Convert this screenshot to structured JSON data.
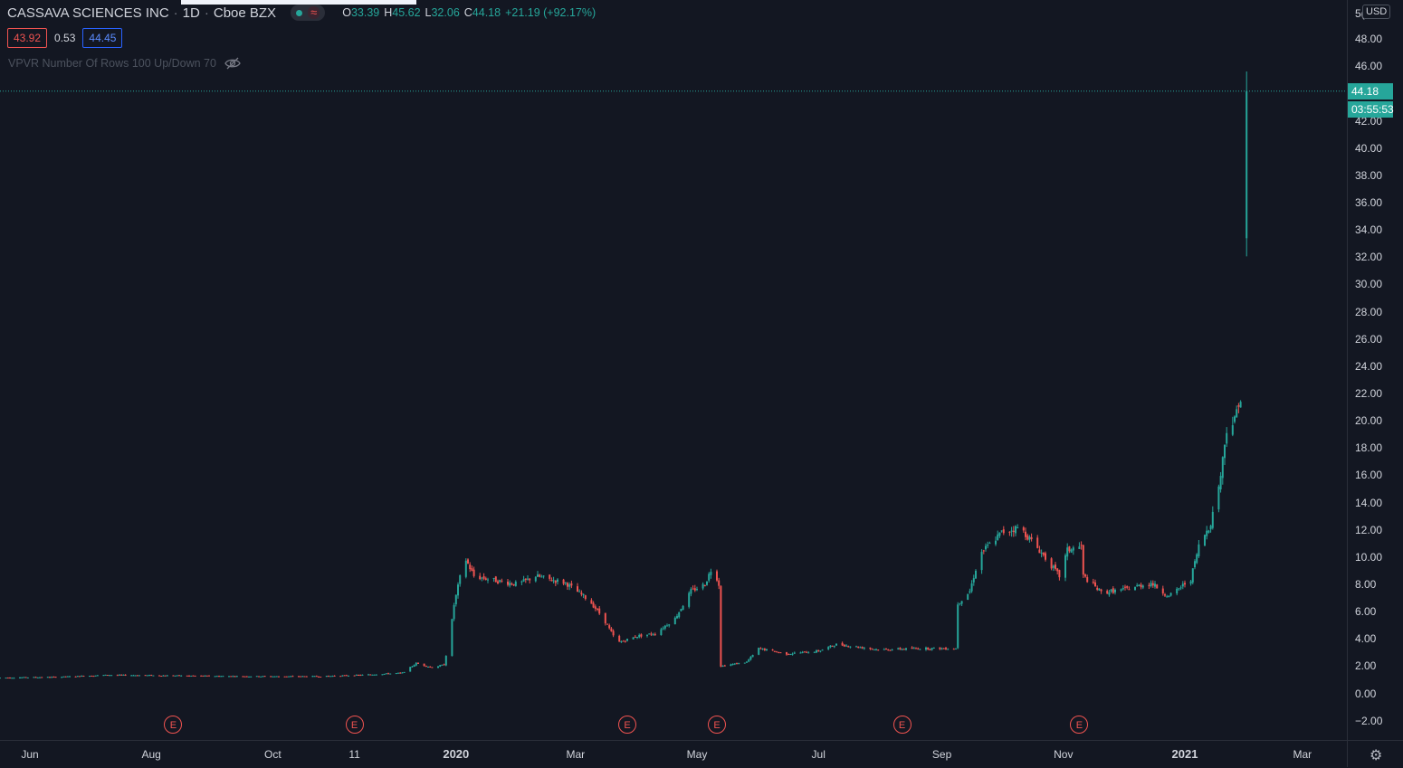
{
  "header": {
    "symbol": "CASSAVA SCIENCES INC",
    "interval": "1D",
    "exchange": "Cboe BZX",
    "ohlc": {
      "o_label": "O",
      "o": "33.39",
      "h_label": "H",
      "h": "45.62",
      "l_label": "L",
      "l": "32.06",
      "c_label": "C",
      "c": "44.18",
      "change": "+21.19 (+92.17%)"
    }
  },
  "quote": {
    "bid": "43.92",
    "spread": "0.53",
    "ask": "44.45"
  },
  "indicator": {
    "label": "VPVR Number Of Rows 100 Up/Down 70"
  },
  "price_axis": {
    "currency": "USD",
    "top_cut_label": "5(",
    "last_price": "44.18",
    "countdown": "03:55:53"
  },
  "earnings_badge": "E",
  "colors": {
    "up": "#26a69a",
    "down": "#ef5350",
    "background": "#131722",
    "grid_line": "#2a2e39",
    "bid": "#ef5350",
    "ask": "#2962ff"
  },
  "icons": [
    "eye-off-icon",
    "settings-gear-icon",
    "wave-icon",
    "status-dot-icon"
  ],
  "chart_data": {
    "type": "candlestick",
    "x_type": "date",
    "x_range": [
      "2019-05-17",
      "2021-03-15"
    ],
    "ylim": [
      -2.6,
      50
    ],
    "y_ticks": [
      48.0,
      46.0,
      42.0,
      40.0,
      38.0,
      36.0,
      34.0,
      32.0,
      30.0,
      28.0,
      26.0,
      24.0,
      22.0,
      20.0,
      18.0,
      16.0,
      14.0,
      12.0,
      10.0,
      8.0,
      6.0,
      4.0,
      2.0,
      0.0,
      -2.0
    ],
    "y_tick_labels": [
      "48.00",
      "46.00",
      "42.00",
      "40.00",
      "38.00",
      "36.00",
      "34.00",
      "32.00",
      "30.00",
      "28.00",
      "26.00",
      "24.00",
      "22.00",
      "20.00",
      "18.00",
      "16.00",
      "14.00",
      "12.00",
      "10.00",
      "8.00",
      "6.00",
      "4.00",
      "2.00",
      "0.00",
      "−2.00"
    ],
    "x_ticks": [
      {
        "date": "2019-06-01",
        "label": "Jun"
      },
      {
        "date": "2019-08-01",
        "label": "Aug"
      },
      {
        "date": "2019-10-01",
        "label": "Oct"
      },
      {
        "date": "2019-11-11",
        "label": "11"
      },
      {
        "date": "2020-01-01",
        "label": "2020",
        "major": true
      },
      {
        "date": "2020-03-01",
        "label": "Mar"
      },
      {
        "date": "2020-05-01",
        "label": "May"
      },
      {
        "date": "2020-07-01",
        "label": "Jul"
      },
      {
        "date": "2020-09-01",
        "label": "Sep"
      },
      {
        "date": "2020-11-01",
        "label": "Nov"
      },
      {
        "date": "2021-01-01",
        "label": "2021",
        "major": true
      },
      {
        "date": "2021-03-01",
        "label": "Mar"
      }
    ],
    "earnings_dates": [
      "2019-08-12",
      "2019-11-11",
      "2020-03-27",
      "2020-05-11",
      "2020-08-12",
      "2020-11-09"
    ],
    "price_path": [
      {
        "date": "2019-05-17",
        "close": 1.15
      },
      {
        "date": "2019-06-15",
        "close": 1.2
      },
      {
        "date": "2019-07-10",
        "close": 1.35
      },
      {
        "date": "2019-08-15",
        "close": 1.3
      },
      {
        "date": "2019-09-20",
        "close": 1.25
      },
      {
        "date": "2019-10-25",
        "close": 1.25
      },
      {
        "date": "2019-11-15",
        "close": 1.35
      },
      {
        "date": "2019-12-05",
        "close": 1.5
      },
      {
        "date": "2019-12-12",
        "close": 2.2
      },
      {
        "date": "2019-12-20",
        "close": 1.9
      },
      {
        "date": "2019-12-26",
        "close": 2.1
      },
      {
        "date": "2019-12-29",
        "close": 4.2
      },
      {
        "date": "2019-12-31",
        "close": 6.5
      },
      {
        "date": "2020-01-03",
        "close": 8.5
      },
      {
        "date": "2020-01-06",
        "close": 9.8
      },
      {
        "date": "2020-01-10",
        "close": 8.6
      },
      {
        "date": "2020-01-20",
        "close": 8.3
      },
      {
        "date": "2020-02-01",
        "close": 8.0
      },
      {
        "date": "2020-02-10",
        "close": 8.6
      },
      {
        "date": "2020-02-25",
        "close": 8.1
      },
      {
        "date": "2020-03-08",
        "close": 6.8
      },
      {
        "date": "2020-03-15",
        "close": 5.5
      },
      {
        "date": "2020-03-22",
        "close": 3.7
      },
      {
        "date": "2020-04-01",
        "close": 4.2
      },
      {
        "date": "2020-04-10",
        "close": 4.4
      },
      {
        "date": "2020-04-20",
        "close": 5.5
      },
      {
        "date": "2020-04-28",
        "close": 7.5
      },
      {
        "date": "2020-05-05",
        "close": 8.0
      },
      {
        "date": "2020-05-09",
        "close": 9.4
      },
      {
        "date": "2020-05-12",
        "close": 8.0
      },
      {
        "date": "2020-05-13",
        "close": 2.0
      },
      {
        "date": "2020-05-26",
        "close": 2.3
      },
      {
        "date": "2020-06-01",
        "close": 3.3
      },
      {
        "date": "2020-06-15",
        "close": 2.9
      },
      {
        "date": "2020-07-01",
        "close": 3.1
      },
      {
        "date": "2020-07-10",
        "close": 3.6
      },
      {
        "date": "2020-08-01",
        "close": 3.2
      },
      {
        "date": "2020-08-20",
        "close": 3.3
      },
      {
        "date": "2020-09-08",
        "close": 3.3
      },
      {
        "date": "2020-09-09",
        "close": 6.6
      },
      {
        "date": "2020-09-15",
        "close": 7.5
      },
      {
        "date": "2020-09-20",
        "close": 10.2
      },
      {
        "date": "2020-10-01",
        "close": 11.8
      },
      {
        "date": "2020-10-10",
        "close": 12.2
      },
      {
        "date": "2020-10-20",
        "close": 10.5
      },
      {
        "date": "2020-10-30",
        "close": 8.6
      },
      {
        "date": "2020-11-03",
        "close": 10.5
      },
      {
        "date": "2020-11-10",
        "close": 10.8
      },
      {
        "date": "2020-11-11",
        "close": 8.6
      },
      {
        "date": "2020-11-20",
        "close": 7.4
      },
      {
        "date": "2020-12-01",
        "close": 7.6
      },
      {
        "date": "2020-12-15",
        "close": 8.1
      },
      {
        "date": "2020-12-24",
        "close": 7.1
      },
      {
        "date": "2021-01-04",
        "close": 8.4
      },
      {
        "date": "2021-01-08",
        "close": 10.8
      },
      {
        "date": "2021-01-14",
        "close": 12.5
      },
      {
        "date": "2021-01-19",
        "close": 16.0
      },
      {
        "date": "2021-01-22",
        "close": 19.5
      },
      {
        "date": "2021-01-26",
        "close": 20.0
      },
      {
        "date": "2021-01-28",
        "close": 21.5
      }
    ],
    "last_candle": {
      "date": "2021-02-01",
      "open": 33.39,
      "high": 45.62,
      "low": 32.06,
      "close": 44.18
    }
  }
}
